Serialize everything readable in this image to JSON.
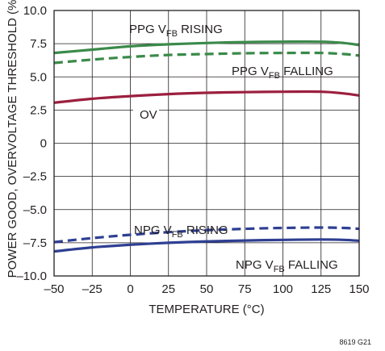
{
  "chart_data": {
    "type": "line",
    "xlabel": "TEMPERATURE (°C)",
    "ylabel": "POWER GOOD, OVERVOLTAGE THRESHOLD (%)",
    "xlim": [
      -50,
      150
    ],
    "ylim": [
      -10,
      10
    ],
    "x_ticks": [
      "–50",
      "–25",
      "0",
      "25",
      "50",
      "75",
      "100",
      "125",
      "150"
    ],
    "y_ticks": [
      "–10.0",
      "–7.5",
      "–5.0",
      "–2.5",
      "0",
      "2.5",
      "5.0",
      "7.5",
      "10.0"
    ],
    "grid": true,
    "note": "8619 G21",
    "series": [
      {
        "name_main": "PPG V",
        "name_sub": "FB",
        "name_tail": " RISING",
        "color": "#3a8a4a",
        "style": "solid",
        "x": [
          -50,
          -25,
          0,
          25,
          50,
          75,
          100,
          125,
          140,
          150
        ],
        "y": [
          6.8,
          7.05,
          7.3,
          7.45,
          7.55,
          7.62,
          7.65,
          7.65,
          7.55,
          7.4
        ]
      },
      {
        "name_main": "PPG V",
        "name_sub": "FB",
        "name_tail": " FALLING",
        "color": "#3a8a4a",
        "style": "dashed",
        "x": [
          -50,
          -25,
          0,
          25,
          50,
          75,
          100,
          125,
          140,
          150
        ],
        "y": [
          6.05,
          6.3,
          6.5,
          6.65,
          6.72,
          6.78,
          6.8,
          6.8,
          6.72,
          6.6
        ]
      },
      {
        "name_main": "OV",
        "name_sub": "",
        "name_tail": "",
        "color": "#9c1f3f",
        "style": "solid",
        "x": [
          -50,
          -25,
          0,
          25,
          50,
          75,
          100,
          125,
          140,
          150
        ],
        "y": [
          3.05,
          3.35,
          3.55,
          3.7,
          3.8,
          3.85,
          3.88,
          3.88,
          3.75,
          3.6
        ]
      },
      {
        "name_main": "NPG V",
        "name_sub": "FB",
        "name_tail": " RISING",
        "color": "#2e3f92",
        "style": "dashed",
        "x": [
          -50,
          -25,
          0,
          25,
          50,
          75,
          100,
          125,
          140,
          150
        ],
        "y": [
          -7.45,
          -7.15,
          -6.9,
          -6.7,
          -6.55,
          -6.45,
          -6.38,
          -6.35,
          -6.38,
          -6.45
        ]
      },
      {
        "name_main": "NPG V",
        "name_sub": "FB",
        "name_tail": " FALLING",
        "color": "#2e3f92",
        "style": "solid",
        "x": [
          -50,
          -25,
          0,
          25,
          50,
          75,
          100,
          125,
          140,
          150
        ],
        "y": [
          -8.15,
          -7.85,
          -7.65,
          -7.5,
          -7.4,
          -7.33,
          -7.28,
          -7.25,
          -7.28,
          -7.35
        ]
      }
    ]
  }
}
